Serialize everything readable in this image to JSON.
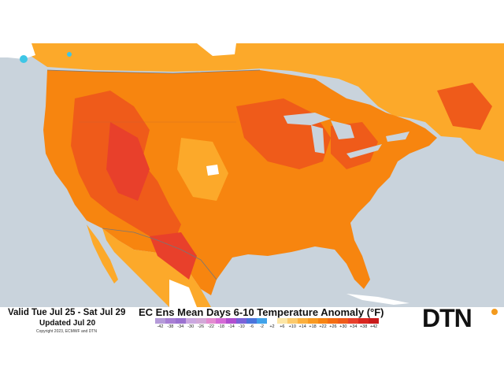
{
  "map": {
    "valid_text": "Valid Tue Jul 25 - Sat Jul 29",
    "updated_text": "Updated Jul 20",
    "copyright_text": "Copyright 2023, ECMWF and DTN",
    "title_text": "EC Ens Mean Days 6-10 Temperature Anomaly (°F)",
    "logo_text": "DTN",
    "colors": {
      "water": "#c9d3dc",
      "land_neutral": "#ffffff",
      "anomaly_light": "#fca92a",
      "anomaly_medium": "#f7850f",
      "anomaly_strong": "#ef5b1a",
      "anomaly_hot": "#e8402b",
      "cool_spot": "#3ec6e6",
      "logo_accent": "#f39a1e"
    }
  },
  "legend": {
    "ticks": [
      "-42",
      "-38",
      "-34",
      "-30",
      "-26",
      "-22",
      "-18",
      "-14",
      "-10",
      "-6",
      "-2",
      "+2",
      "+6",
      "+10",
      "+14",
      "+18",
      "+22",
      "+26",
      "+30",
      "+34",
      "+38",
      "+42"
    ],
    "colors": [
      "#b59bd9",
      "#a87fd4",
      "#9b72d0",
      "#cba8e0",
      "#d3a9d8",
      "#e38cd0",
      "#d56bd6",
      "#b04fcf",
      "#7b63d8",
      "#4b74dc",
      "#41a3ea",
      "#ffffff",
      "#fde6a6",
      "#fcca6c",
      "#fcb03e",
      "#f99a22",
      "#f78413",
      "#f46d13",
      "#ef5b1a",
      "#e8402b",
      "#d9261f",
      "#c81b1b"
    ]
  }
}
